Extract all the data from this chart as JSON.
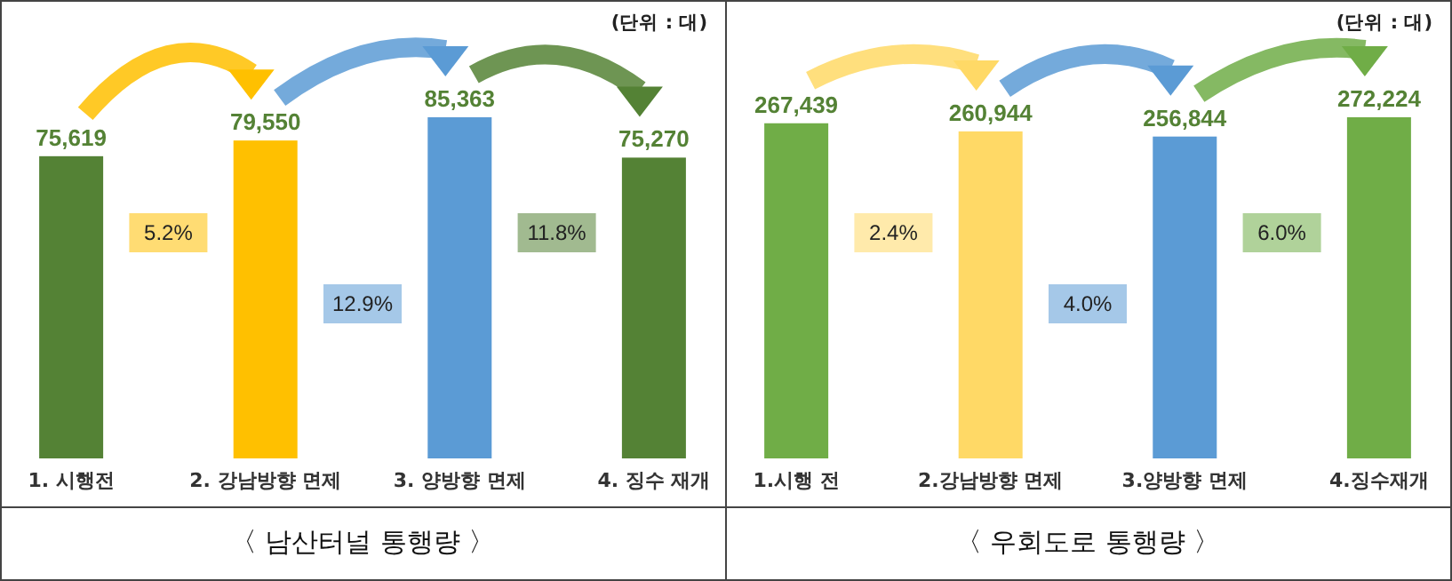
{
  "chart_data": [
    {
      "type": "bar",
      "title": "〈 남산터널 통행량 〉",
      "categories": [
        "1. 시행전",
        "2. 강남방향 면제",
        "3. 양방향 면제",
        "4. 징수 재개"
      ],
      "values": [
        75619,
        79550,
        85363,
        75270
      ],
      "colors": [
        "#548235",
        "#ffc000",
        "#5b9bd5",
        "#548235"
      ],
      "tick_labels": "x",
      "value_labels": [
        "75,619",
        "79,550",
        "85,363",
        "75,270"
      ],
      "annotations": [
        "(단위 : 대)",
        "5.2%",
        "12.9%",
        "11.8%"
      ]
    },
    {
      "type": "bar",
      "title": "〈 우회도로 통행량 〉",
      "categories": [
        "1.시행 전",
        "2.강남방향 면제",
        "3.양방향 면제",
        "4.징수재개"
      ],
      "values": [
        267439,
        260944,
        256844,
        272224
      ],
      "colors": [
        "#70ad47",
        "#ffd966",
        "#5b9bd5",
        "#70ad47"
      ],
      "tick_labels": "x",
      "value_labels": [
        "267,439",
        "260,944",
        "256,844",
        "272,224"
      ],
      "annotations": [
        "(단위 : 대)",
        "2.4%",
        "4.0%",
        "6.0%"
      ]
    }
  ]
}
